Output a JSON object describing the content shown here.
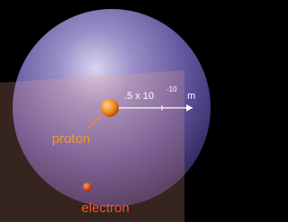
{
  "labels": {
    "distance": ".5 x 10",
    "exponent": "-10",
    "unit": "m",
    "proton": "proton",
    "electron": "electron"
  }
}
